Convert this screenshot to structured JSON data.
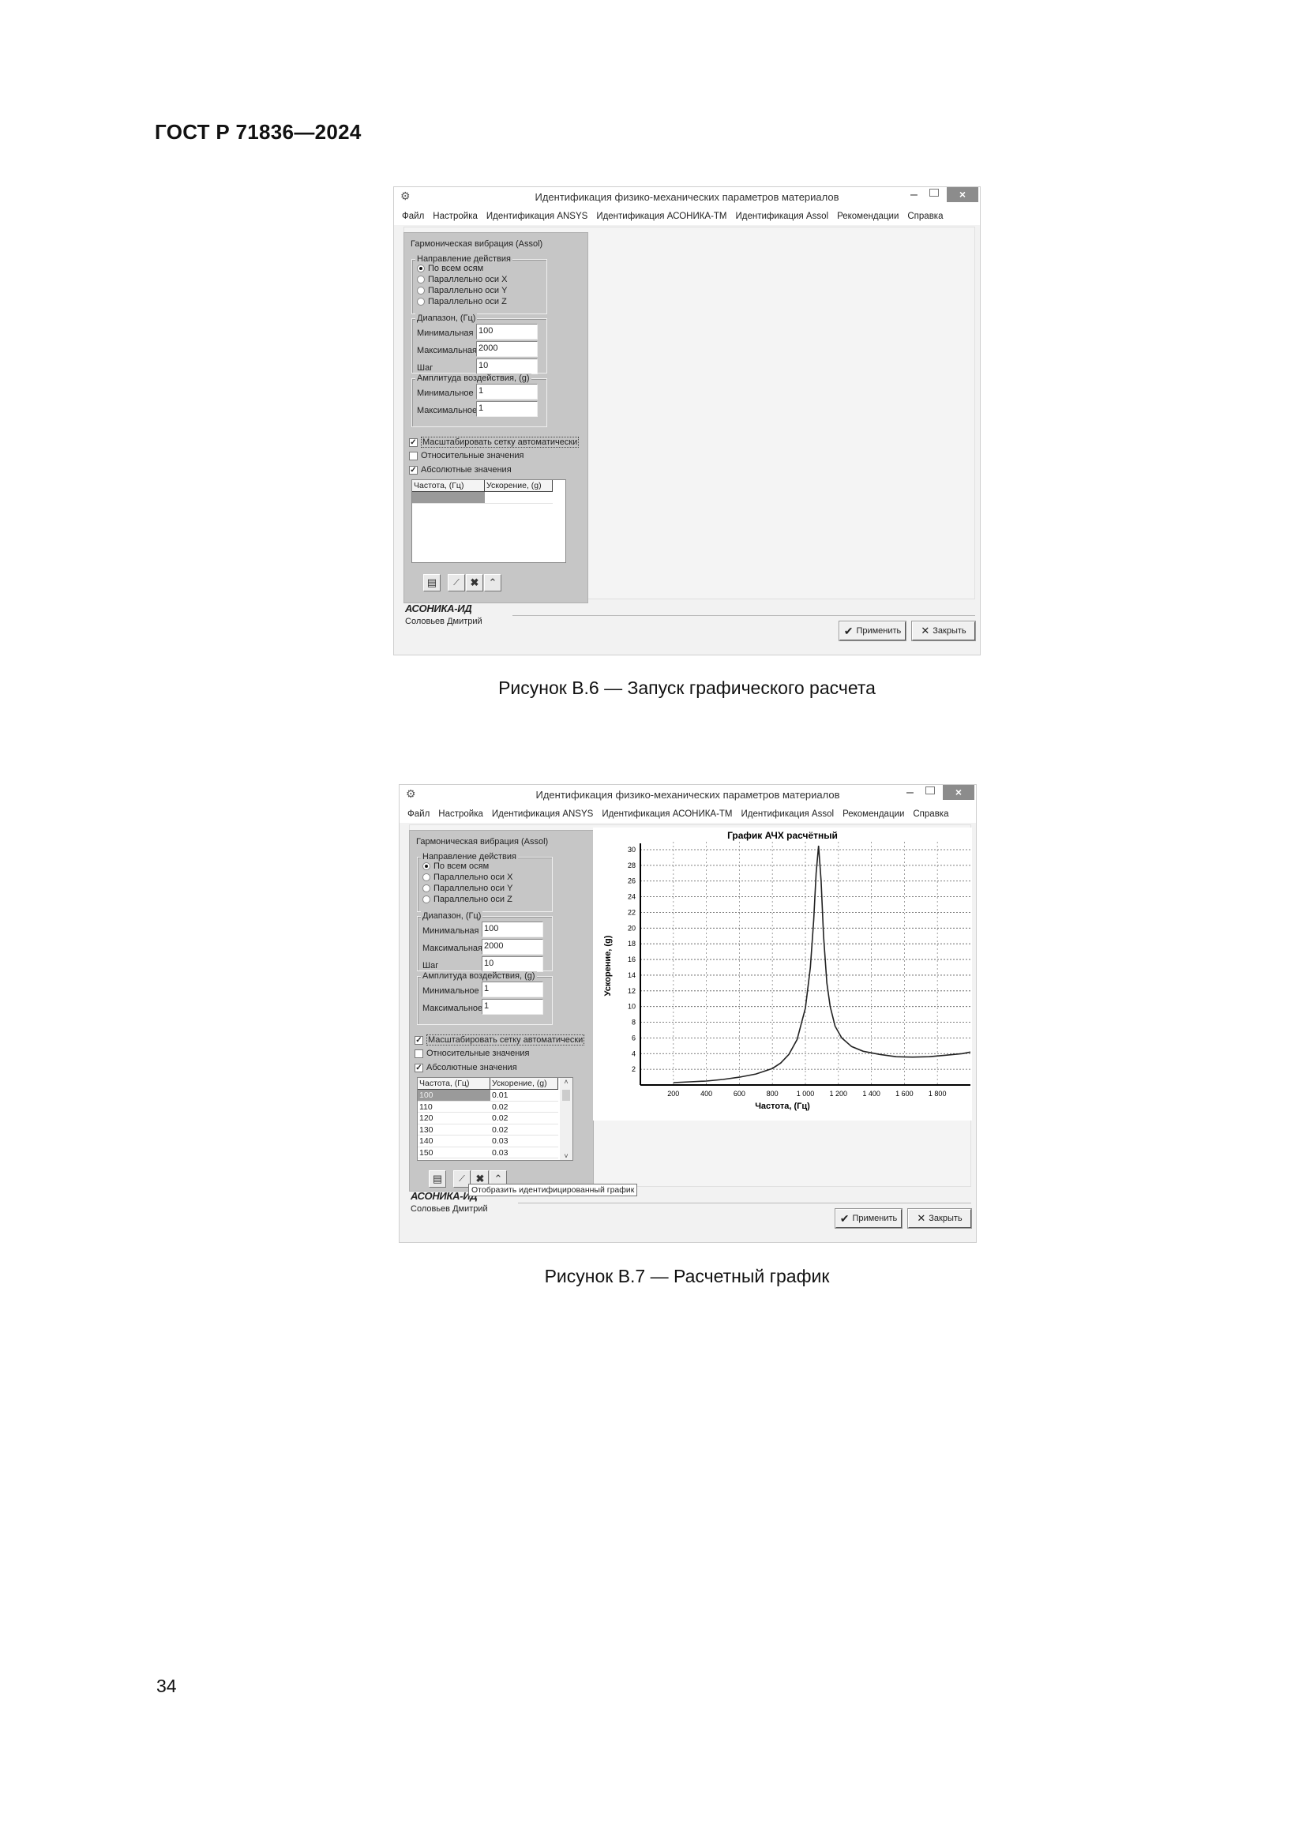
{
  "header": {
    "doc_id": "ГОСТ Р 71836—2024"
  },
  "page_number": "34",
  "figures": [
    {
      "caption": "Рисунок В.6 — Запуск графического расчета",
      "window": {
        "title": "Идентификация физико-механических параметров материалов",
        "controls": {
          "minimize": "–",
          "close": "×"
        },
        "menu": [
          "Файл",
          "Настройка",
          "Идентификация ANSYS",
          "Идентификация АСОНИКА-ТМ",
          "Идентификация Assol",
          "Рекомендации",
          "Справка"
        ],
        "panel": {
          "title": "Гармоническая вибрация (Assol)",
          "direction": {
            "label": "Направление действия",
            "options": [
              "По всем осям",
              "Параллельно оси X",
              "Параллельно оси Y",
              "Параллельно оси Z"
            ],
            "selected": 0
          },
          "range": {
            "label": "Диапазон, (Гц)",
            "fields": [
              {
                "label": "Минимальная",
                "value": "100"
              },
              {
                "label": "Максимальная",
                "value": "2000"
              },
              {
                "label": "Шаг",
                "value": "10"
              }
            ]
          },
          "amplitude": {
            "label": "Амплитуда воздействия, (g)",
            "fields": [
              {
                "label": "Минимальное",
                "value": "1"
              },
              {
                "label": "Максимальное",
                "value": "1"
              }
            ]
          },
          "checkboxes": [
            {
              "label": "Масштабировать сетку автоматически",
              "checked": true,
              "check": "✓"
            },
            {
              "label": "Относительные значения",
              "checked": false,
              "check": ""
            },
            {
              "label": "Абсолютные значения",
              "checked": true,
              "check": "✓"
            }
          ],
          "table": {
            "headers": [
              "Частота, (Гц)",
              "Ускорение, (g)"
            ],
            "rows": [
              [
                "",
                ""
              ]
            ],
            "scrollbar": false
          }
        },
        "footer": {
          "brand": "АСОНИКА-ИД",
          "author": "Соловьев Дмитрий",
          "apply": "Применить",
          "close": "Закрыть",
          "apply_icon": "✔",
          "close_icon": "✕"
        }
      }
    },
    {
      "caption": "Рисунок В.7 — Расчетный график",
      "window": {
        "title": "Идентификация физико-механических параметров материалов",
        "controls": {
          "minimize": "–",
          "close": "×"
        },
        "menu": [
          "Файл",
          "Настройка",
          "Идентификация ANSYS",
          "Идентификация АСОНИКА-ТМ",
          "Идентификация Assol",
          "Рекомендации",
          "Справка"
        ],
        "panel": {
          "title": "Гармоническая вибрация (Assol)",
          "direction": {
            "label": "Направление действия",
            "options": [
              "По всем осям",
              "Параллельно оси X",
              "Параллельно оси Y",
              "Параллельно оси Z"
            ],
            "selected": 0
          },
          "range": {
            "label": "Диапазон, (Гц)",
            "fields": [
              {
                "label": "Минимальная",
                "value": "100"
              },
              {
                "label": "Максимальная",
                "value": "2000"
              },
              {
                "label": "Шаг",
                "value": "10"
              }
            ]
          },
          "amplitude": {
            "label": "Амплитуда воздействия, (g)",
            "fields": [
              {
                "label": "Минимальное",
                "value": "1"
              },
              {
                "label": "Максимальное",
                "value": "1"
              }
            ]
          },
          "checkboxes": [
            {
              "label": "Масштабировать сетку автоматически",
              "checked": true,
              "check": "✓"
            },
            {
              "label": "Относительные значения",
              "checked": false,
              "check": ""
            },
            {
              "label": "Абсолютные значения",
              "checked": true,
              "check": "✓"
            }
          ],
          "table": {
            "headers": [
              "Частота, (Гц)",
              "Ускорение, (g)"
            ],
            "rows": [
              [
                "100",
                "0.01"
              ],
              [
                "110",
                "0.02"
              ],
              [
                "120",
                "0.02"
              ],
              [
                "130",
                "0.02"
              ],
              [
                "140",
                "0.03"
              ],
              [
                "150",
                "0.03"
              ]
            ],
            "scrollbar": true,
            "scroll_up": "˄",
            "scroll_down": "˅"
          }
        },
        "tooltip": "Отобразить идентифицированный график",
        "footer": {
          "brand": "АСОНИКА-ИД",
          "author": "Соловьев Дмитрий",
          "apply": "Применить",
          "close": "Закрыть",
          "apply_icon": "✔",
          "close_icon": "✕"
        }
      }
    }
  ],
  "chart_data": {
    "type": "line",
    "title": "График АЧХ расчётный",
    "xlabel": "Частота, (Гц)",
    "ylabel": "Ускорение, (g)",
    "xlim": [
      0,
      2000
    ],
    "ylim": [
      0,
      31
    ],
    "xticks": [
      200,
      400,
      600,
      800,
      1000,
      1200,
      1400,
      1600,
      1800
    ],
    "xtick_labels": [
      "200",
      "400",
      "600",
      "800",
      "1 000",
      "1 200",
      "1 400",
      "1 600",
      "1 800"
    ],
    "yticks": [
      2,
      4,
      6,
      8,
      10,
      12,
      14,
      16,
      18,
      20,
      22,
      24,
      26,
      28,
      30
    ],
    "grid": true,
    "x": [
      200,
      300,
      400,
      500,
      600,
      700,
      800,
      850,
      900,
      950,
      1000,
      1030,
      1050,
      1065,
      1080,
      1095,
      1110,
      1130,
      1150,
      1180,
      1220,
      1280,
      1350,
      1450,
      1550,
      1650,
      1750,
      1850,
      1950,
      2000
    ],
    "y": [
      0.3,
      0.4,
      0.5,
      0.7,
      1.0,
      1.4,
      2.1,
      2.8,
      3.9,
      5.8,
      9.8,
      15,
      21,
      27,
      30.5,
      26,
      19,
      13,
      10,
      7.5,
      6.0,
      4.9,
      4.3,
      3.9,
      3.6,
      3.55,
      3.6,
      3.8,
      4.0,
      4.2
    ]
  }
}
